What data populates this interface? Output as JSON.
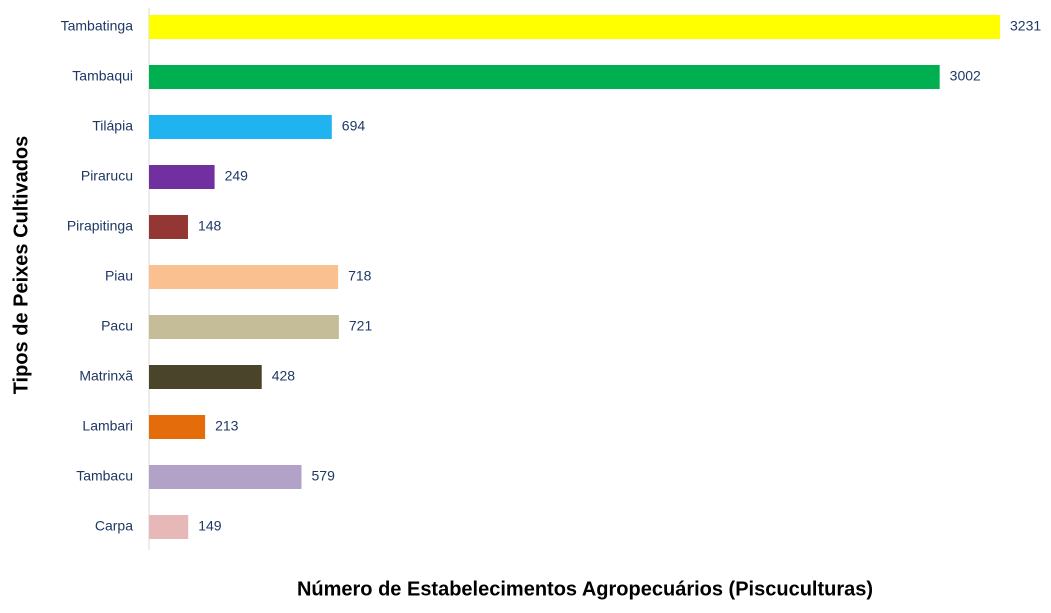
{
  "chart_data": {
    "type": "bar",
    "orientation": "horizontal",
    "categories": [
      "Tambatinga",
      "Tambaqui",
      "Tilápia",
      "Pirarucu",
      "Pirapitinga",
      "Piau",
      "Pacu",
      "Matrinxã",
      "Lambari",
      "Tambacu",
      "Carpa"
    ],
    "values": [
      3231,
      3002,
      694,
      249,
      148,
      718,
      721,
      428,
      213,
      579,
      149
    ],
    "colors": [
      "#ffff00",
      "#00b050",
      "#1fb4f0",
      "#7030a0",
      "#943634",
      "#fac090",
      "#c4bd97",
      "#4a452a",
      "#e46c0a",
      "#b3a2c7",
      "#e6b9b8"
    ],
    "xlabel": "Número de Estabelecimentos Agropecuários (Piscuculturas)",
    "ylabel": "Tipos de Peixes Cultivados"
  }
}
